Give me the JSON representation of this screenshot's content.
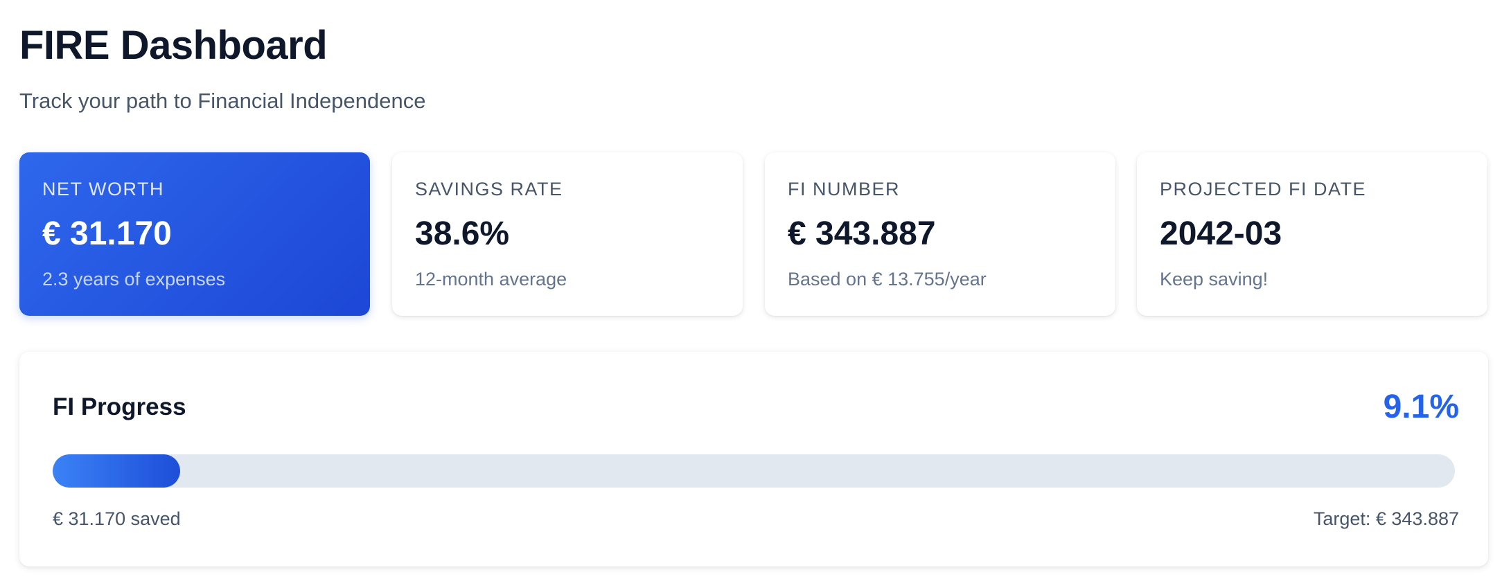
{
  "header": {
    "title": "FIRE Dashboard",
    "subtitle": "Track your path to Financial Independence"
  },
  "stats": [
    {
      "label": "NET WORTH",
      "value": "€ 31.170",
      "note": "2.3 years of expenses"
    },
    {
      "label": "SAVINGS RATE",
      "value": "38.6%",
      "note": "12-month average"
    },
    {
      "label": "FI NUMBER",
      "value": "€ 343.887",
      "note": "Based on € 13.755/year"
    },
    {
      "label": "PROJECTED FI DATE",
      "value": "2042-03",
      "note": "Keep saving!"
    }
  ],
  "progress": {
    "title": "FI Progress",
    "percent_label": "9.1%",
    "fraction": 0.091,
    "saved_label": "€ 31.170 saved",
    "target_label": "Target: € 343.887"
  },
  "colors": {
    "accent": "#2563eb",
    "text": "#0f172a",
    "muted": "#475569",
    "track": "#e2e8f0"
  }
}
